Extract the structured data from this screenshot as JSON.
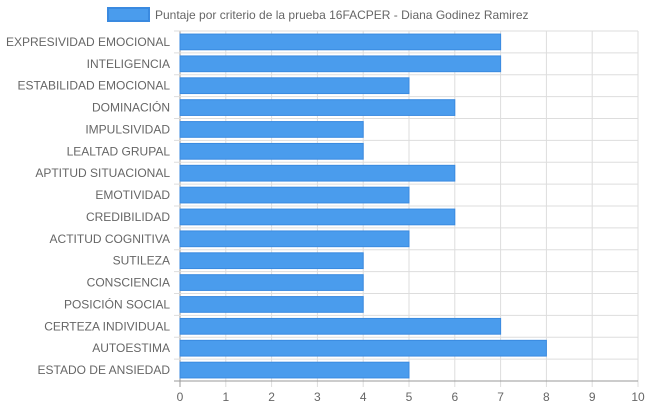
{
  "chart_data": {
    "type": "bar",
    "orientation": "horizontal",
    "series": [
      {
        "name": "Puntaje por criterio de la prueba 16FACPER - Diana Godinez Ramirez",
        "values": [
          7,
          7,
          5,
          6,
          4,
          4,
          6,
          5,
          6,
          5,
          4,
          4,
          4,
          7,
          8,
          5
        ]
      }
    ],
    "categories": [
      "EXPRESIVIDAD EMOCIONAL",
      "INTELIGENCIA",
      "ESTABILIDAD EMOCIONAL",
      "DOMINACIÓN",
      "IMPULSIVIDAD",
      "LEALTAD GRUPAL",
      "APTITUD SITUACIONAL",
      "EMOTIVIDAD",
      "CREDIBILIDAD",
      "ACTITUD COGNITIVA",
      "SUTILEZA",
      "CONSCIENCIA",
      "POSICIÓN SOCIAL",
      "CERTEZA INDIVIDUAL",
      "AUTOESTIMA",
      "ESTADO DE ANSIEDAD"
    ],
    "xlim": [
      0,
      10
    ],
    "ticks": [
      "0",
      "1",
      "2",
      "3",
      "4",
      "5",
      "6",
      "7",
      "8",
      "9",
      "10"
    ],
    "grid": true,
    "legend_position": "top",
    "colors": {
      "bar_fill": "#4a9ced",
      "bar_border": "#3a8ae0",
      "grid": "#dddddd",
      "axis": "#999999"
    }
  }
}
